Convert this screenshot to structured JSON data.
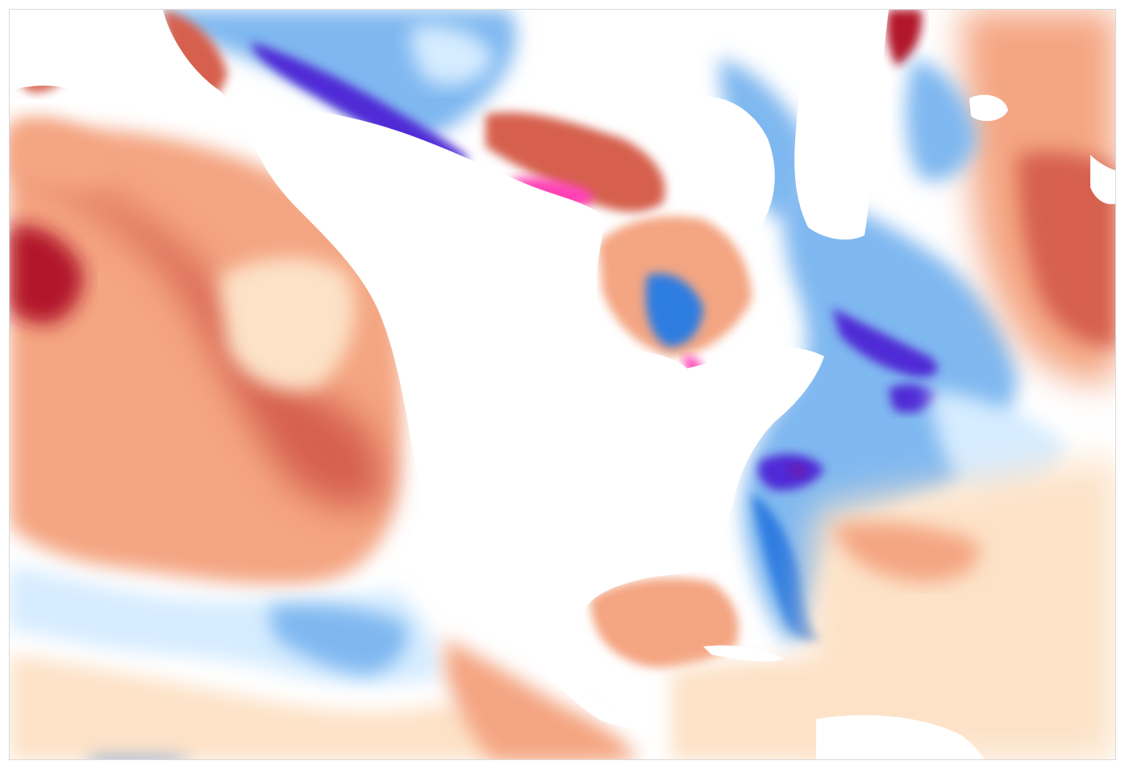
{
  "map": {
    "type": "sea-surface-temperature-anomaly",
    "labels_visible": false,
    "colors": {
      "land": "#ffffff",
      "neutral": "#ffffff",
      "warm_light": "#fde2c7",
      "warm_medium": "#f4a582",
      "warm_strong": "#d6604d",
      "warm_extreme": "#b2182b",
      "warm_peak": "#ff3fb5",
      "cool_light": "#d6ecff",
      "cool_medium": "#7fb8f0",
      "cool_strong": "#2f7de1",
      "cool_extreme": "#4f2bd6",
      "cool_peak": "#6a1bb3",
      "frame_border": "#d9d9d9"
    }
  }
}
